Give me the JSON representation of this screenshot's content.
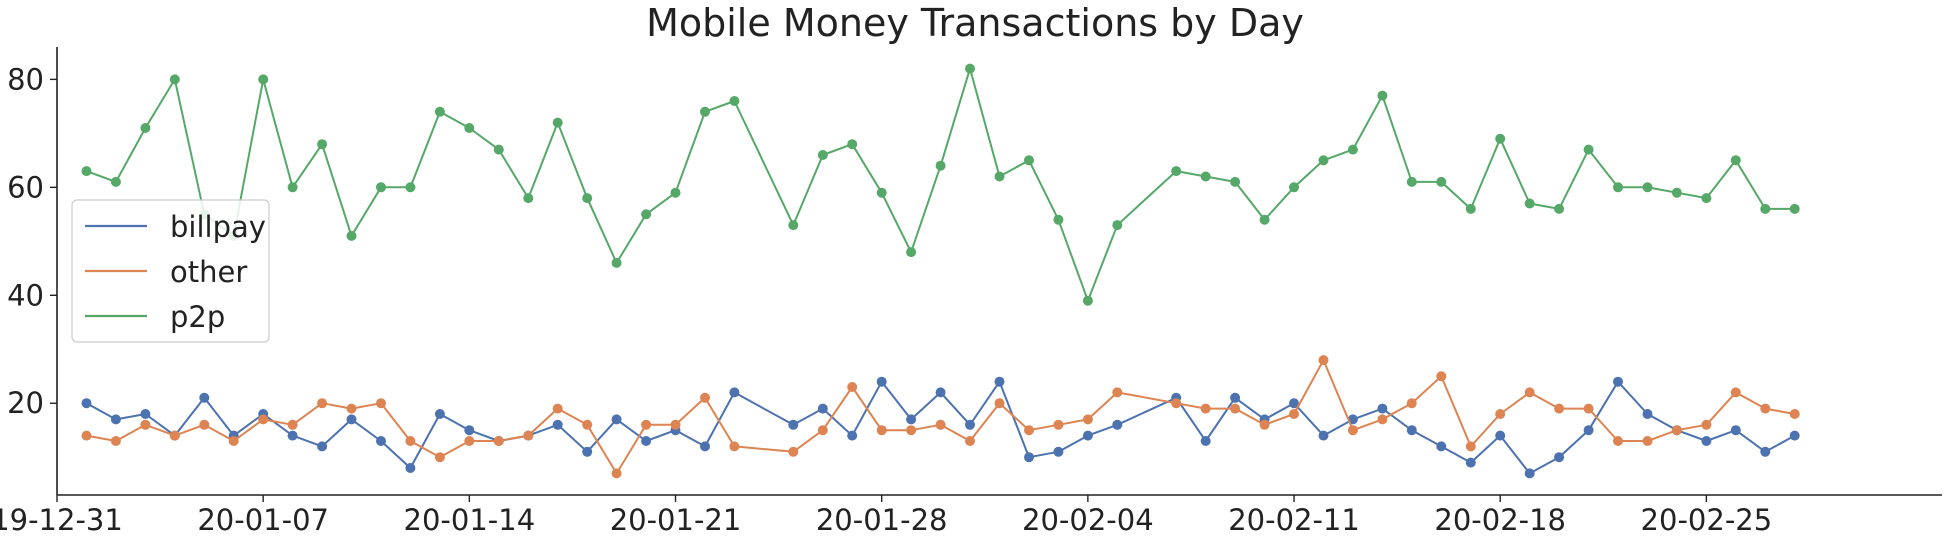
{
  "chart_data": {
    "type": "line",
    "title": "Mobile Money Transactions by Day",
    "xlabel": "",
    "ylabel": "",
    "x_tick_labels": [
      "19-12-31",
      "20-01-07",
      "20-01-14",
      "20-01-21",
      "20-01-28",
      "20-02-04",
      "20-02-11",
      "20-02-18",
      "20-02-25"
    ],
    "y_tick_labels": [
      "20",
      "40",
      "60",
      "80"
    ],
    "ylim": [
      3,
      86
    ],
    "xlim": [
      "2019-12-31",
      "2020-03-04"
    ],
    "grid": false,
    "legend_position": "center-left",
    "x": [
      "2020-01-01",
      "2020-01-02",
      "2020-01-03",
      "2020-01-04",
      "2020-01-05",
      "2020-01-06",
      "2020-01-07",
      "2020-01-08",
      "2020-01-09",
      "2020-01-10",
      "2020-01-11",
      "2020-01-12",
      "2020-01-13",
      "2020-01-14",
      "2020-01-15",
      "2020-01-16",
      "2020-01-17",
      "2020-01-18",
      "2020-01-19",
      "2020-01-20",
      "2020-01-21",
      "2020-01-22",
      "2020-01-23",
      "2020-01-25",
      "2020-01-26",
      "2020-01-27",
      "2020-01-28",
      "2020-01-29",
      "2020-01-30",
      "2020-01-31",
      "2020-02-01",
      "2020-02-02",
      "2020-02-03",
      "2020-02-04",
      "2020-02-05",
      "2020-02-07",
      "2020-02-08",
      "2020-02-09",
      "2020-02-10",
      "2020-02-11",
      "2020-02-12",
      "2020-02-13",
      "2020-02-14",
      "2020-02-15",
      "2020-02-16",
      "2020-02-17",
      "2020-02-18",
      "2020-02-19",
      "2020-02-20",
      "2020-02-21",
      "2020-02-22",
      "2020-02-23",
      "2020-02-24",
      "2020-02-25",
      "2020-02-26",
      "2020-02-27",
      "2020-02-28"
    ],
    "series": [
      {
        "name": "billpay",
        "color": "#4c72b0",
        "values": [
          20,
          17,
          18,
          14,
          21,
          14,
          18,
          14,
          12,
          17,
          13,
          8,
          18,
          15,
          13,
          14,
          16,
          11,
          17,
          13,
          15,
          12,
          22,
          16,
          19,
          14,
          24,
          17,
          22,
          16,
          24,
          10,
          11,
          14,
          16,
          21,
          13,
          21,
          17,
          20,
          14,
          17,
          19,
          15,
          12,
          9,
          14,
          7,
          10,
          15,
          24,
          18,
          15,
          13,
          15,
          11,
          14
        ]
      },
      {
        "name": "other",
        "color": "#dd8452",
        "values": [
          14,
          13,
          16,
          14,
          16,
          13,
          17,
          16,
          20,
          19,
          20,
          13,
          10,
          13,
          13,
          14,
          19,
          16,
          7,
          16,
          16,
          21,
          12,
          11,
          15,
          23,
          15,
          15,
          16,
          13,
          20,
          15,
          16,
          17,
          22,
          20,
          19,
          19,
          16,
          18,
          28,
          15,
          17,
          20,
          25,
          12,
          18,
          22,
          19,
          19,
          13,
          13,
          15,
          16,
          22,
          19,
          18
        ]
      },
      {
        "name": "p2p",
        "color": "#55a868",
        "values": [
          63,
          61,
          71,
          80,
          55,
          51,
          80,
          60,
          68,
          51,
          60,
          60,
          74,
          71,
          67,
          58,
          72,
          58,
          46,
          55,
          59,
          74,
          76,
          53,
          66,
          68,
          59,
          48,
          64,
          82,
          62,
          65,
          54,
          39,
          53,
          63,
          62,
          61,
          54,
          60,
          65,
          67,
          77,
          61,
          61,
          56,
          69,
          57,
          56,
          67,
          60,
          60,
          59,
          58,
          65,
          56,
          56
        ]
      }
    ]
  }
}
